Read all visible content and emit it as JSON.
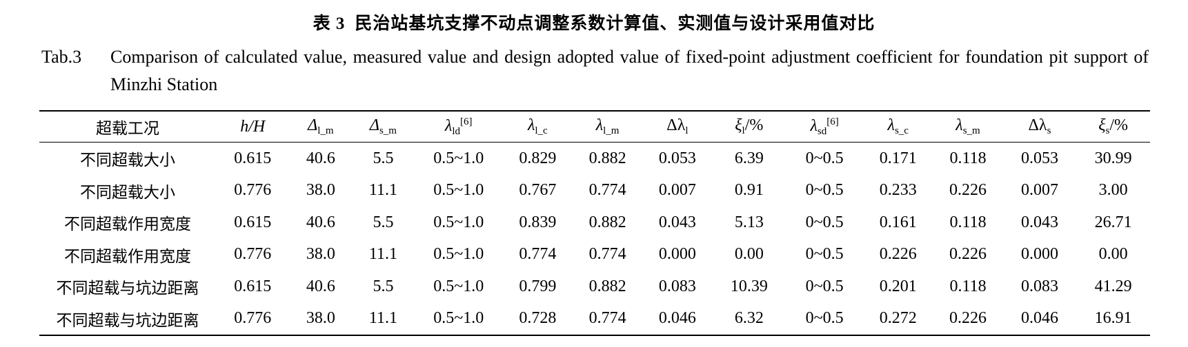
{
  "caption": {
    "cn_number": "表 3",
    "cn_title": "民治站基坑支撑不动点调整系数计算值、实测值与设计采用值对比",
    "en_label": "Tab.3",
    "en_title": "Comparison of calculated value, measured value and design adopted value of fixed-point adjustment coefficient for foundation pit support of Minzhi Station"
  },
  "table": {
    "headers": [
      {
        "base": "超载工况",
        "italic": false,
        "sub": "",
        "sup": "",
        "suffix": "",
        "cn": true
      },
      {
        "base": "h",
        "italic": true,
        "sub": "",
        "sup": "",
        "suffix": "/H",
        "cn": false
      },
      {
        "base": "Δ",
        "italic": true,
        "sub": "l_m",
        "sup": "",
        "suffix": "",
        "cn": false
      },
      {
        "base": "Δ",
        "italic": true,
        "sub": "s_m",
        "sup": "",
        "suffix": "",
        "cn": false
      },
      {
        "base": "λ",
        "italic": true,
        "sub": "ld",
        "sup": "[6]",
        "suffix": "",
        "cn": false
      },
      {
        "base": "λ",
        "italic": true,
        "sub": "l_c",
        "sup": "",
        "suffix": "",
        "cn": false
      },
      {
        "base": "λ",
        "italic": true,
        "sub": "l_m",
        "sup": "",
        "suffix": "",
        "cn": false
      },
      {
        "base": "Δλ",
        "italic": false,
        "sub": "l",
        "sup": "",
        "suffix": "",
        "cn": false
      },
      {
        "base": "ξ",
        "italic": true,
        "sub": "l",
        "sup": "",
        "suffix": "/%",
        "cn": false
      },
      {
        "base": "λ",
        "italic": true,
        "sub": "sd",
        "sup": "[6]",
        "suffix": "",
        "cn": false
      },
      {
        "base": "λ",
        "italic": true,
        "sub": "s_c",
        "sup": "",
        "suffix": "",
        "cn": false
      },
      {
        "base": "λ",
        "italic": true,
        "sub": "s_m",
        "sup": "",
        "suffix": "",
        "cn": false
      },
      {
        "base": "Δλ",
        "italic": false,
        "sub": "s",
        "sup": "",
        "suffix": "",
        "cn": false
      },
      {
        "base": "ξ",
        "italic": true,
        "sub": "s",
        "sup": "",
        "suffix": "/%",
        "cn": false
      }
    ],
    "rows": [
      [
        "不同超载大小",
        "0.615",
        "40.6",
        "5.5",
        "0.5~1.0",
        "0.829",
        "0.882",
        "0.053",
        "6.39",
        "0~0.5",
        "0.171",
        "0.118",
        "0.053",
        "30.99"
      ],
      [
        "不同超载大小",
        "0.776",
        "38.0",
        "11.1",
        "0.5~1.0",
        "0.767",
        "0.774",
        "0.007",
        "0.91",
        "0~0.5",
        "0.233",
        "0.226",
        "0.007",
        "3.00"
      ],
      [
        "不同超载作用宽度",
        "0.615",
        "40.6",
        "5.5",
        "0.5~1.0",
        "0.839",
        "0.882",
        "0.043",
        "5.13",
        "0~0.5",
        "0.161",
        "0.118",
        "0.043",
        "26.71"
      ],
      [
        "不同超载作用宽度",
        "0.776",
        "38.0",
        "11.1",
        "0.5~1.0",
        "0.774",
        "0.774",
        "0.000",
        "0.00",
        "0~0.5",
        "0.226",
        "0.226",
        "0.000",
        "0.00"
      ],
      [
        "不同超载与坑边距离",
        "0.615",
        "40.6",
        "5.5",
        "0.5~1.0",
        "0.799",
        "0.882",
        "0.083",
        "10.39",
        "0~0.5",
        "0.201",
        "0.118",
        "0.083",
        "41.29"
      ],
      [
        "不同超载与坑边距离",
        "0.776",
        "38.0",
        "11.1",
        "0.5~1.0",
        "0.728",
        "0.774",
        "0.046",
        "6.32",
        "0~0.5",
        "0.272",
        "0.226",
        "0.046",
        "16.91"
      ]
    ]
  }
}
